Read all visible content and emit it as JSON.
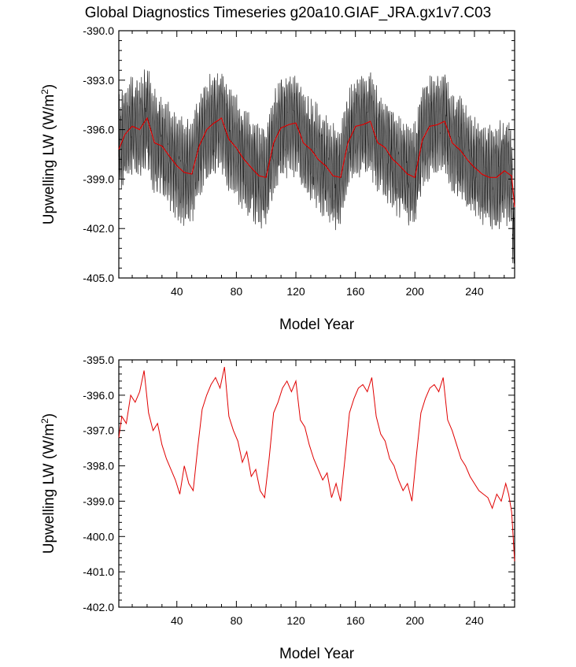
{
  "title": "Global Diagnostics Timeseries g20a10.GIAF_JRA.gx1v7.C03",
  "colors": {
    "monthly": "#000000",
    "annual": "#e00000",
    "axis": "#000000"
  },
  "chart_data": [
    {
      "type": "line",
      "xlabel": "Model Year",
      "ylabel_main": "Upwelling LW (W/m",
      "ylabel_sup": "2",
      "ylabel_close": ")",
      "xlim": [
        1,
        267
      ],
      "ylim": [
        -405.0,
        -390.0
      ],
      "x_ticks": [
        40,
        80,
        120,
        160,
        200,
        240
      ],
      "x_tick_labels": [
        "40",
        "80",
        "120",
        "160",
        "200",
        "240"
      ],
      "y_ticks": [
        -390.0,
        -393.0,
        -396.0,
        -399.0,
        -402.0,
        -405.0
      ],
      "y_tick_labels": [
        "-390.0",
        "-393.0",
        "-396.0",
        "-399.0",
        "-402.0",
        "-405.0"
      ],
      "series": [
        {
          "role": "monthly",
          "color": "#000000",
          "seasonal_amplitude": 2.5,
          "noise_amplitude": 0.8,
          "note": "monthly values oscillate around annual mean"
        },
        {
          "role": "annual",
          "color": "#e00000",
          "x": [
            1,
            5,
            10,
            15,
            20,
            25,
            30,
            35,
            40,
            45,
            50,
            55,
            60,
            65,
            70,
            75,
            80,
            85,
            90,
            95,
            100,
            105,
            110,
            115,
            120,
            125,
            130,
            135,
            140,
            145,
            150,
            155,
            160,
            165,
            170,
            175,
            180,
            185,
            190,
            195,
            200,
            205,
            210,
            215,
            220,
            225,
            230,
            235,
            240,
            245,
            250,
            255,
            260,
            265,
            267
          ],
          "y": [
            -397.2,
            -396.3,
            -395.8,
            -396.0,
            -395.3,
            -396.8,
            -397.0,
            -397.6,
            -398.2,
            -398.6,
            -398.7,
            -397.0,
            -396.0,
            -395.6,
            -395.3,
            -396.6,
            -397.1,
            -397.8,
            -398.3,
            -398.8,
            -398.9,
            -396.8,
            -395.9,
            -395.7,
            -395.6,
            -396.8,
            -397.2,
            -397.8,
            -398.2,
            -398.8,
            -398.9,
            -396.8,
            -395.8,
            -395.7,
            -395.5,
            -396.8,
            -397.1,
            -397.8,
            -398.2,
            -398.7,
            -398.9,
            -396.6,
            -395.8,
            -395.7,
            -395.5,
            -396.8,
            -397.2,
            -397.8,
            -398.3,
            -398.7,
            -398.9,
            -398.9,
            -398.5,
            -398.8,
            -400.7
          ]
        }
      ]
    },
    {
      "type": "line",
      "xlabel": "Model Year",
      "ylabel_main": "Upwelling LW (W/m",
      "ylabel_sup": "2",
      "ylabel_close": ")",
      "xlim": [
        1,
        267
      ],
      "ylim": [
        -402.0,
        -395.0
      ],
      "x_ticks": [
        40,
        80,
        120,
        160,
        200,
        240
      ],
      "x_tick_labels": [
        "40",
        "80",
        "120",
        "160",
        "200",
        "240"
      ],
      "y_ticks": [
        -395.0,
        -396.0,
        -397.0,
        -398.0,
        -399.0,
        -400.0,
        -401.0,
        -402.0
      ],
      "y_tick_labels": [
        "-395.0",
        "-396.0",
        "-397.0",
        "-398.0",
        "-399.0",
        "-400.0",
        "-401.0",
        "-402.0"
      ],
      "series": [
        {
          "role": "annual",
          "color": "#e00000",
          "x": [
            1,
            3,
            6,
            9,
            12,
            15,
            18,
            21,
            24,
            27,
            30,
            33,
            36,
            39,
            42,
            45,
            48,
            51,
            54,
            57,
            60,
            63,
            66,
            69,
            72,
            75,
            78,
            81,
            84,
            87,
            90,
            93,
            96,
            99,
            102,
            105,
            108,
            111,
            114,
            117,
            120,
            123,
            126,
            129,
            132,
            135,
            138,
            141,
            144,
            147,
            150,
            153,
            156,
            159,
            162,
            165,
            168,
            171,
            174,
            177,
            180,
            183,
            186,
            189,
            192,
            195,
            198,
            201,
            204,
            207,
            210,
            213,
            216,
            219,
            222,
            225,
            228,
            231,
            234,
            237,
            240,
            243,
            246,
            249,
            252,
            255,
            258,
            261,
            263,
            265,
            267
          ],
          "y": [
            -397.2,
            -396.6,
            -396.8,
            -396.0,
            -396.2,
            -395.9,
            -395.3,
            -396.5,
            -397.0,
            -396.8,
            -397.4,
            -397.8,
            -398.1,
            -398.4,
            -398.8,
            -398.0,
            -398.5,
            -398.7,
            -397.5,
            -396.4,
            -396.0,
            -395.7,
            -395.5,
            -395.8,
            -395.2,
            -396.6,
            -397.0,
            -397.3,
            -397.9,
            -397.6,
            -398.3,
            -398.1,
            -398.7,
            -398.9,
            -397.8,
            -396.5,
            -396.2,
            -395.8,
            -395.6,
            -395.9,
            -395.6,
            -396.7,
            -396.9,
            -397.4,
            -397.8,
            -398.1,
            -398.4,
            -398.2,
            -398.9,
            -398.5,
            -399.0,
            -397.8,
            -396.5,
            -396.1,
            -395.8,
            -395.7,
            -395.9,
            -395.5,
            -396.6,
            -397.1,
            -397.3,
            -397.8,
            -398.0,
            -398.4,
            -398.7,
            -398.5,
            -399.0,
            -397.7,
            -396.5,
            -396.1,
            -395.8,
            -395.7,
            -395.9,
            -395.5,
            -396.7,
            -397.0,
            -397.4,
            -397.8,
            -398.0,
            -398.3,
            -398.5,
            -398.7,
            -398.8,
            -398.9,
            -399.2,
            -398.8,
            -399.0,
            -398.5,
            -398.8,
            -399.3,
            -400.7
          ]
        }
      ]
    }
  ]
}
